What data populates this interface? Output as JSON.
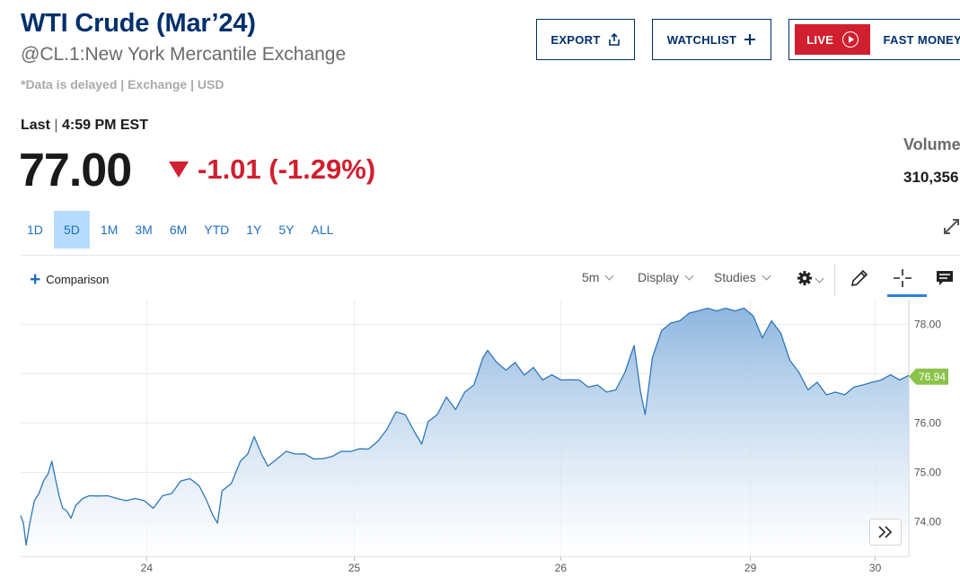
{
  "header": {
    "title": "WTI Crude (Mar’24)",
    "subtitle": "@CL.1:New York Mercantile Exchange",
    "delay_note": "*Data is delayed | Exchange | USD"
  },
  "actions": {
    "export_label": "EXPORT",
    "watchlist_label": "WATCHLIST",
    "live_label": "LIVE",
    "fast_money_label": "FAST MONEY"
  },
  "quote": {
    "last_label": "Last",
    "last_sep": "|",
    "last_time": "4:59 PM EST",
    "price": "77.00",
    "change": "-1.01 (-1.29%)",
    "volume_label": "Volume",
    "volume_value": "310,356"
  },
  "ranges": [
    "1D",
    "5D",
    "1M",
    "3M",
    "6M",
    "YTD",
    "1Y",
    "5Y",
    "ALL"
  ],
  "active_range": "5D",
  "toolbar": {
    "comparison_label": "Comparison",
    "interval": "5m",
    "display": "Display",
    "studies": "Studies"
  },
  "colors": {
    "brand": "#002f6c",
    "down": "#d0202f",
    "link": "#1e6fc2",
    "line": "#2f77b8",
    "current_badge": "#8bc34a"
  },
  "chart_data": {
    "type": "area",
    "x_tick_labels": [
      "24",
      "25",
      "26",
      "29",
      "30"
    ],
    "y_tick_labels": [
      "74.00",
      "75.00",
      "76.00",
      "77.00",
      "78.00"
    ],
    "ylim": [
      73.3,
      78.5
    ],
    "current_value": "76.94",
    "series": [
      {
        "points": [
          [
            0.0,
            74.1
          ],
          [
            0.3,
            74.0
          ],
          [
            0.6,
            73.5
          ],
          [
            1.0,
            74.0
          ],
          [
            1.5,
            74.4
          ],
          [
            2.0,
            74.6
          ],
          [
            2.5,
            74.8
          ],
          [
            3.0,
            75.0
          ],
          [
            3.4,
            75.2
          ],
          [
            3.8,
            74.9
          ],
          [
            4.2,
            74.5
          ],
          [
            4.6,
            74.3
          ],
          [
            5.0,
            74.2
          ],
          [
            5.5,
            74.1
          ],
          [
            6.0,
            74.3
          ],
          [
            6.8,
            74.5
          ],
          [
            7.5,
            74.5
          ],
          [
            8.5,
            74.55
          ],
          [
            9.5,
            74.5
          ],
          [
            10.5,
            74.5
          ],
          [
            11.5,
            74.4
          ],
          [
            12.5,
            74.5
          ],
          [
            13.5,
            74.4
          ],
          [
            14.5,
            74.3
          ],
          [
            15.5,
            74.5
          ],
          [
            16.5,
            74.6
          ],
          [
            17.5,
            74.8
          ],
          [
            18.5,
            74.9
          ],
          [
            19.5,
            74.7
          ],
          [
            20.2,
            74.5
          ],
          [
            21.0,
            74.1
          ],
          [
            21.5,
            74.0
          ],
          [
            22.0,
            74.6
          ],
          [
            23.0,
            74.8
          ],
          [
            24.0,
            75.2
          ],
          [
            24.8,
            75.4
          ],
          [
            25.5,
            75.7
          ],
          [
            26.3,
            75.4
          ],
          [
            27.0,
            75.1
          ],
          [
            28.0,
            75.3
          ],
          [
            29.0,
            75.4
          ],
          [
            30.0,
            75.4
          ],
          [
            31.0,
            75.35
          ],
          [
            32.0,
            75.3
          ],
          [
            33.0,
            75.25
          ],
          [
            34.0,
            75.35
          ],
          [
            35.0,
            75.4
          ],
          [
            36.0,
            75.45
          ],
          [
            37.0,
            75.45
          ],
          [
            38.0,
            75.5
          ],
          [
            39.0,
            75.6
          ],
          [
            40.0,
            75.9
          ],
          [
            41.0,
            76.2
          ],
          [
            42.0,
            76.2
          ],
          [
            43.0,
            75.8
          ],
          [
            43.8,
            75.6
          ],
          [
            44.5,
            76.0
          ],
          [
            45.5,
            76.2
          ],
          [
            46.5,
            76.5
          ],
          [
            47.5,
            76.3
          ],
          [
            48.5,
            76.6
          ],
          [
            49.5,
            76.8
          ],
          [
            50.5,
            77.3
          ],
          [
            51.0,
            77.5
          ],
          [
            52.0,
            77.2
          ],
          [
            53.0,
            77.1
          ],
          [
            54.0,
            77.2
          ],
          [
            55.0,
            77.0
          ],
          [
            56.0,
            77.1
          ],
          [
            57.0,
            76.9
          ],
          [
            58.0,
            76.95
          ],
          [
            59.0,
            76.9
          ],
          [
            60.0,
            76.85
          ],
          [
            61.0,
            76.9
          ],
          [
            62.0,
            76.7
          ],
          [
            63.0,
            76.8
          ],
          [
            64.0,
            76.6
          ],
          [
            65.0,
            76.7
          ],
          [
            66.0,
            77.0
          ],
          [
            67.0,
            77.6
          ],
          [
            67.7,
            76.6
          ],
          [
            68.2,
            76.2
          ],
          [
            69.0,
            77.3
          ],
          [
            70.0,
            77.9
          ],
          [
            71.0,
            78.0
          ],
          [
            72.0,
            78.1
          ],
          [
            73.0,
            78.2
          ],
          [
            74.0,
            78.3
          ],
          [
            75.0,
            78.3
          ],
          [
            76.0,
            78.3
          ],
          [
            77.0,
            78.3
          ],
          [
            78.0,
            78.3
          ],
          [
            79.0,
            78.3
          ],
          [
            80.0,
            78.2
          ],
          [
            81.0,
            77.7
          ],
          [
            82.0,
            78.1
          ],
          [
            83.0,
            77.8
          ],
          [
            84.0,
            77.3
          ],
          [
            85.0,
            77.0
          ],
          [
            86.0,
            76.7
          ],
          [
            87.0,
            76.8
          ],
          [
            88.0,
            76.6
          ],
          [
            89.0,
            76.6
          ],
          [
            90.0,
            76.6
          ],
          [
            91.0,
            76.7
          ],
          [
            92.0,
            76.8
          ],
          [
            93.0,
            76.8
          ],
          [
            94.0,
            76.9
          ],
          [
            95.0,
            76.95
          ],
          [
            96.0,
            76.9
          ],
          [
            97.0,
            76.94
          ]
        ]
      }
    ]
  }
}
